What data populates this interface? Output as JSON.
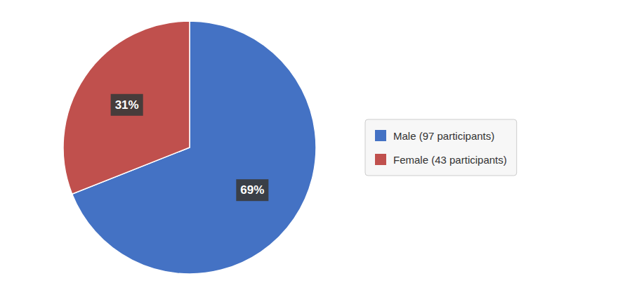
{
  "chart_data": {
    "type": "pie",
    "categories": [
      "Male (97 participants)",
      "Female (43 participants)"
    ],
    "values": [
      69,
      31
    ],
    "value_labels": [
      "69%",
      "31%"
    ],
    "colors": [
      "#4472C4",
      "#C0504D"
    ],
    "data_labels": true,
    "legend": "right"
  }
}
